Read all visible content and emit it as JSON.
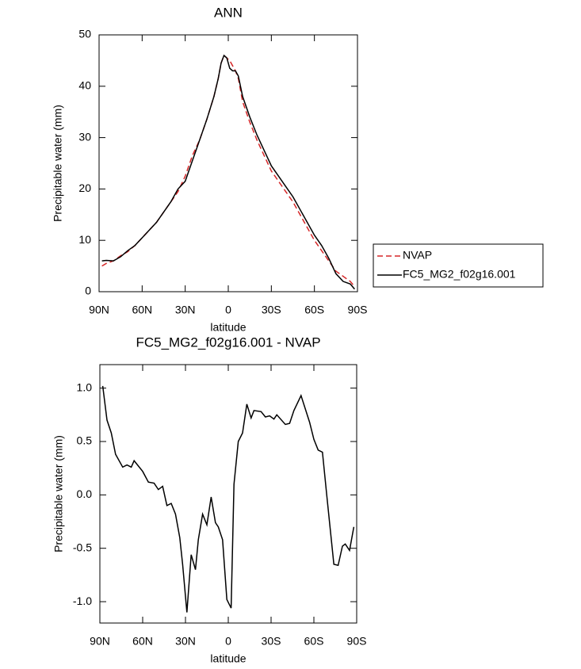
{
  "chart_data": [
    {
      "type": "line",
      "title": "ANN",
      "xlabel": "latitude",
      "ylabel": "Precipitable water (mm)",
      "xlim": [
        90,
        -90
      ],
      "xticks": [
        {
          "value": 90,
          "label": "90N"
        },
        {
          "value": 60,
          "label": "60N"
        },
        {
          "value": 30,
          "label": "30N"
        },
        0,
        {
          "value": -30,
          "label": "30S"
        },
        {
          "value": -60,
          "label": "60S"
        },
        {
          "value": -90,
          "label": "90S"
        }
      ],
      "ylim": [
        0,
        50
      ],
      "yticks": [
        0,
        10,
        20,
        30,
        40,
        50
      ],
      "x": [
        88,
        85,
        80,
        75,
        70,
        65,
        60,
        55,
        50,
        45,
        40,
        35,
        30,
        25,
        20,
        15,
        10,
        7,
        5,
        3,
        1,
        -1,
        -3,
        -5,
        -7,
        -10,
        -15,
        -20,
        -25,
        -30,
        -35,
        -40,
        -45,
        -50,
        -55,
        -60,
        -65,
        -70,
        -75,
        -80,
        -85,
        -88
      ],
      "series": [
        {
          "name": "NVAP",
          "color": "#d62728",
          "linestyle": "dashed",
          "values": [
            5.0,
            5.5,
            6.0,
            7.0,
            7.8,
            9.0,
            10.5,
            12.0,
            13.5,
            15.5,
            17.5,
            19.5,
            22.5,
            26.5,
            29.5,
            33.5,
            38.0,
            41.5,
            44.5,
            46.0,
            45.5,
            45.0,
            44.0,
            43.0,
            41.5,
            37.0,
            33.0,
            29.5,
            26.5,
            23.5,
            21.5,
            19.5,
            17.5,
            15.0,
            12.5,
            10.0,
            8.0,
            6.0,
            4.0,
            3.0,
            2.0,
            1.0
          ]
        },
        {
          "name": "FC5_MG2_f02g16.001",
          "color": "#000000",
          "linestyle": "solid",
          "values": [
            6.0,
            6.1,
            6.0,
            6.8,
            8.0,
            9.0,
            10.5,
            12.0,
            13.5,
            15.5,
            17.5,
            20.0,
            21.5,
            25.5,
            29.5,
            33.5,
            38.0,
            41.5,
            44.5,
            46.0,
            45.5,
            43.5,
            43.0,
            43.0,
            42.0,
            38.0,
            34.0,
            30.5,
            27.5,
            24.5,
            22.5,
            20.5,
            18.5,
            16.0,
            13.5,
            11.0,
            9.0,
            6.5,
            3.5,
            2.0,
            1.5,
            0.5
          ]
        }
      ]
    },
    {
      "type": "line",
      "title": "FC5_MG2_f02g16.001 - NVAP",
      "xlabel": "latitude",
      "ylabel": "Precipitable water (mm)",
      "xlim": [
        90,
        -90
      ],
      "xticks": [
        {
          "value": 90,
          "label": "90N"
        },
        {
          "value": 60,
          "label": "60N"
        },
        {
          "value": 30,
          "label": "30N"
        },
        0,
        {
          "value": -30,
          "label": "30S"
        },
        {
          "value": -60,
          "label": "60S"
        },
        {
          "value": -90,
          "label": "90S"
        }
      ],
      "ylim": [
        -1.2,
        1.22
      ],
      "yticks": [
        {
          "value": -1.0,
          "label": "-1.0"
        },
        -0.5,
        {
          "value": 0.0,
          "label": "0.0"
        },
        0.5,
        {
          "value": 1.0,
          "label": "1.0"
        }
      ],
      "x": [
        88,
        85,
        82,
        79,
        74,
        71,
        68,
        66,
        60,
        56,
        52,
        49,
        46,
        43,
        40,
        37,
        34,
        32,
        29,
        26,
        23,
        21,
        18,
        15,
        12,
        9,
        7,
        4,
        1,
        -2,
        -4,
        -7,
        -10,
        -13,
        -16,
        -18,
        -23,
        -26,
        -29,
        -32,
        -34,
        -40,
        -43,
        -46,
        -51,
        -57,
        -60,
        -63,
        -66,
        -69,
        -74,
        -77,
        -80,
        -82,
        -85,
        -88
      ],
      "color": "#000000",
      "values": [
        1.02,
        0.7,
        0.58,
        0.38,
        0.26,
        0.28,
        0.26,
        0.32,
        0.22,
        0.12,
        0.11,
        0.05,
        0.08,
        -0.1,
        -0.08,
        -0.18,
        -0.4,
        -0.65,
        -1.1,
        -0.56,
        -0.7,
        -0.42,
        -0.18,
        -0.28,
        -0.02,
        -0.26,
        -0.3,
        -0.42,
        -0.98,
        -1.06,
        0.1,
        0.5,
        0.58,
        0.85,
        0.72,
        0.79,
        0.78,
        0.73,
        0.74,
        0.71,
        0.75,
        0.66,
        0.67,
        0.79,
        0.93,
        0.68,
        0.52,
        0.42,
        0.4,
        0.0,
        -0.65,
        -0.66,
        -0.48,
        -0.46,
        -0.52,
        -0.3
      ]
    }
  ]
}
